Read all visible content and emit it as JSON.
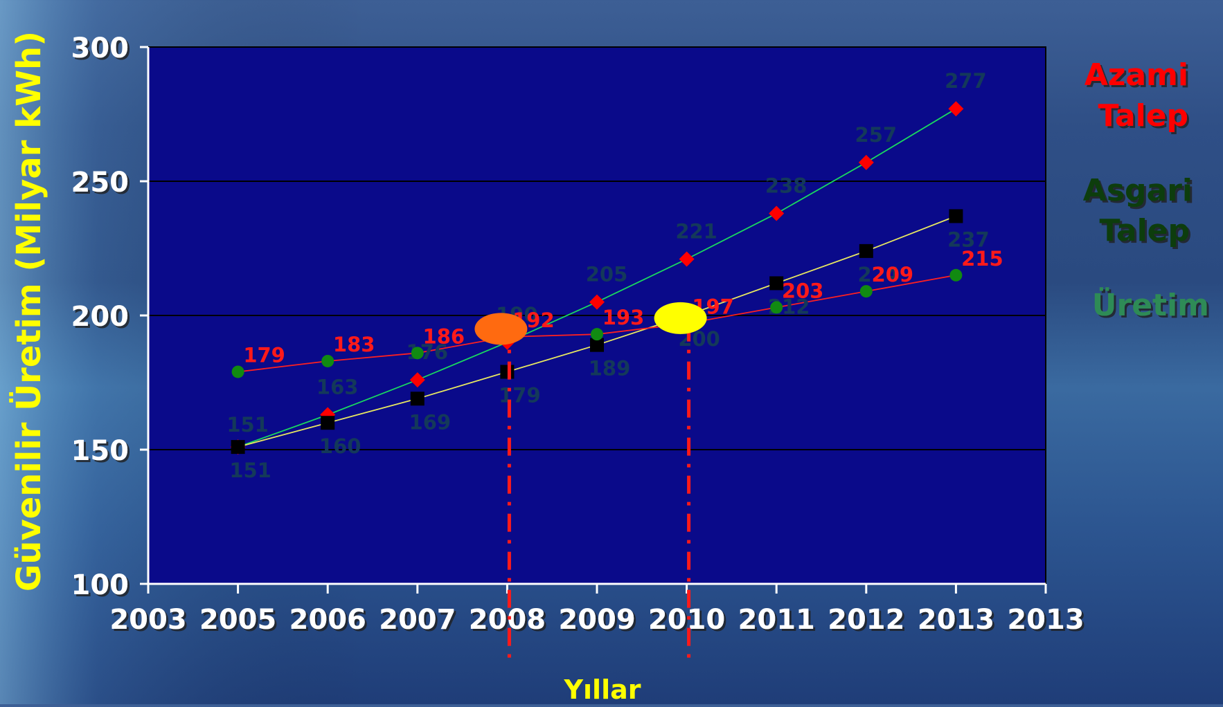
{
  "chart_data": {
    "type": "line",
    "xlabel": "Yıllar",
    "ylabel": "Güvenilir Üretim (Milyar kWh)",
    "ylim": [
      100,
      300
    ],
    "yticks": [
      "100",
      "150",
      "200",
      "250",
      "300"
    ],
    "categories": [
      "2003",
      "2005",
      "2006",
      "2007",
      "2008",
      "2009",
      "2010",
      "2011",
      "2012",
      "2013",
      "2013"
    ],
    "series": [
      {
        "name": "Azami Talep",
        "color": "#ff0000",
        "line_color": "#19d860",
        "marker": "diamond",
        "label_color": "#14395a",
        "x": [
          "2005",
          "2006",
          "2007",
          "2008",
          "2009",
          "2010",
          "2011",
          "2012",
          "2013"
        ],
        "values": [
          151,
          163,
          176,
          190,
          205,
          221,
          238,
          257,
          277
        ],
        "labels": [
          "151",
          "163",
          "176",
          "190",
          "205",
          "221",
          "238",
          "257",
          "277"
        ]
      },
      {
        "name": "Asgari Talep",
        "color": "#000000",
        "line_color": "#e8e860",
        "marker": "square",
        "label_color": "#14395a",
        "x": [
          "2005",
          "2006",
          "2007",
          "2008",
          "2009",
          "2010",
          "2011",
          "2012",
          "2013"
        ],
        "values": [
          151,
          160,
          169,
          179,
          189,
          200,
          212,
          224,
          237
        ],
        "labels": [
          "151",
          "160",
          "169",
          "179",
          "189",
          "200",
          "212",
          "224",
          "237"
        ]
      },
      {
        "name": "Üretim",
        "color": "#118a11",
        "line_color": "#ff2020",
        "marker": "circle",
        "label_color": "#ff1a1a",
        "x": [
          "2005",
          "2006",
          "2007",
          "2008",
          "2009",
          "2010",
          "2011",
          "2012",
          "2013"
        ],
        "values": [
          179,
          183,
          186,
          192,
          193,
          197,
          203,
          209,
          215
        ],
        "labels": [
          "179",
          "183",
          "186",
          "192",
          "193",
          "197",
          "203",
          "209",
          "215"
        ]
      }
    ],
    "annotations": [
      {
        "type": "ellipse",
        "x": "2008",
        "y": 195,
        "color": "#ff6a10"
      },
      {
        "type": "ellipse",
        "x": "2010",
        "y": 199,
        "color": "#ffff00"
      },
      {
        "type": "vline",
        "x": "2008",
        "color": "#ff1a1a",
        "style": "dash-dot"
      },
      {
        "type": "vline",
        "x": "2010",
        "color": "#ff1a1a",
        "style": "dash-dot"
      }
    ],
    "grid": true,
    "plot_background": "#0a0a8a"
  },
  "legend": {
    "azami": [
      "Azami",
      "Talep"
    ],
    "asgari": [
      "Asgari",
      "Talep"
    ],
    "uretim": "Üretim"
  },
  "colors": {
    "axis_title": "#ffff00",
    "tick_label": "#ffffff",
    "legend_azami": "#ff0000",
    "legend_asgari": "#0b3d0b",
    "legend_uretim": "#2e8b57"
  }
}
